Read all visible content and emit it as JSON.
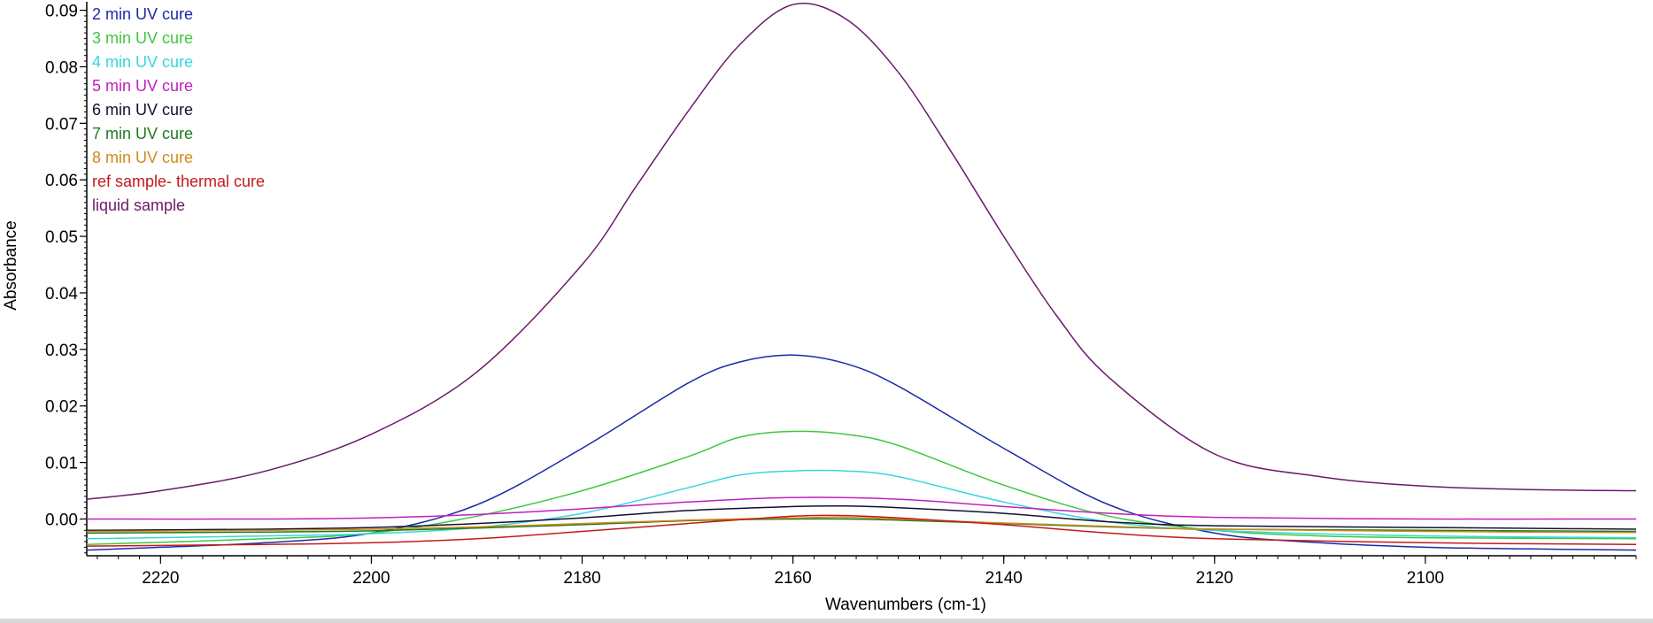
{
  "chart_data": {
    "type": "line",
    "xlabel": "Wavenumbers (cm-1)",
    "ylabel": "Absorbance",
    "x_range": [
      2227,
      2080
    ],
    "y_range": [
      -0.0065,
      0.0915
    ],
    "x_reversed": true,
    "x_ticks": [
      2220,
      2200,
      2180,
      2160,
      2140,
      2120,
      2100
    ],
    "y_ticks": [
      0.0,
      0.01,
      0.02,
      0.03,
      0.04,
      0.05,
      0.06,
      0.07,
      0.08,
      0.09
    ],
    "y_tick_labels": [
      "0.00",
      "0.01",
      "0.02",
      "0.03",
      "0.04",
      "0.05",
      "0.06",
      "0.07",
      "0.08",
      "0.09"
    ],
    "x_tick_labels": [
      "2220",
      "2200",
      "2180",
      "2160",
      "2140",
      "2120",
      "2100"
    ],
    "legend_position": "top-left",
    "grid": false,
    "series": [
      {
        "name": "2 min UV cure",
        "color": "#1c2aa8",
        "points": [
          [
            2227,
            -0.0055
          ],
          [
            2220,
            -0.005
          ],
          [
            2210,
            -0.0042
          ],
          [
            2200,
            -0.0025
          ],
          [
            2190,
            0.0025
          ],
          [
            2180,
            0.0125
          ],
          [
            2170,
            0.024
          ],
          [
            2165,
            0.0278
          ],
          [
            2160,
            0.029
          ],
          [
            2155,
            0.0275
          ],
          [
            2150,
            0.0235
          ],
          [
            2140,
            0.0125
          ],
          [
            2130,
            0.0025
          ],
          [
            2120,
            -0.0025
          ],
          [
            2110,
            -0.0042
          ],
          [
            2100,
            -0.005
          ],
          [
            2090,
            -0.0053
          ],
          [
            2080,
            -0.0055
          ]
        ]
      },
      {
        "name": "3 min UV cure",
        "color": "#3ec83e",
        "points": [
          [
            2227,
            -0.0045
          ],
          [
            2210,
            -0.0035
          ],
          [
            2200,
            -0.0025
          ],
          [
            2190,
            0.0005
          ],
          [
            2180,
            0.005
          ],
          [
            2170,
            0.011
          ],
          [
            2165,
            0.0145
          ],
          [
            2160,
            0.0155
          ],
          [
            2155,
            0.015
          ],
          [
            2150,
            0.013
          ],
          [
            2140,
            0.006
          ],
          [
            2130,
            0.0005
          ],
          [
            2120,
            -0.002
          ],
          [
            2110,
            -0.003
          ],
          [
            2100,
            -0.0033
          ],
          [
            2080,
            -0.0035
          ]
        ]
      },
      {
        "name": "4 min UV cure",
        "color": "#36d6df",
        "points": [
          [
            2227,
            -0.0035
          ],
          [
            2210,
            -0.003
          ],
          [
            2200,
            -0.0026
          ],
          [
            2190,
            -0.0015
          ],
          [
            2180,
            0.001
          ],
          [
            2170,
            0.0055
          ],
          [
            2165,
            0.0078
          ],
          [
            2160,
            0.0085
          ],
          [
            2155,
            0.0085
          ],
          [
            2150,
            0.0075
          ],
          [
            2140,
            0.003
          ],
          [
            2130,
            -0.0005
          ],
          [
            2120,
            -0.002
          ],
          [
            2100,
            -0.003
          ],
          [
            2080,
            -0.0033
          ]
        ]
      },
      {
        "name": "5 min UV cure",
        "color": "#c020c0",
        "points": [
          [
            2227,
            0.0
          ],
          [
            2210,
            0.0
          ],
          [
            2200,
            0.0002
          ],
          [
            2190,
            0.0008
          ],
          [
            2180,
            0.0018
          ],
          [
            2170,
            0.003
          ],
          [
            2160,
            0.0038
          ],
          [
            2150,
            0.0035
          ],
          [
            2140,
            0.0022
          ],
          [
            2130,
            0.001
          ],
          [
            2120,
            0.0003
          ],
          [
            2100,
            0.0
          ],
          [
            2080,
            0.0
          ]
        ]
      },
      {
        "name": "6 min UV cure",
        "color": "#111133",
        "points": [
          [
            2227,
            -0.002
          ],
          [
            2210,
            -0.0018
          ],
          [
            2200,
            -0.0015
          ],
          [
            2190,
            -0.0008
          ],
          [
            2180,
            0.0002
          ],
          [
            2170,
            0.0015
          ],
          [
            2160,
            0.0022
          ],
          [
            2155,
            0.0023
          ],
          [
            2150,
            0.002
          ],
          [
            2140,
            0.001
          ],
          [
            2130,
            -0.0005
          ],
          [
            2120,
            -0.0012
          ],
          [
            2100,
            -0.0015
          ],
          [
            2080,
            -0.0018
          ]
        ]
      },
      {
        "name": "7 min UV cure",
        "color": "#1f7a1f",
        "points": [
          [
            2227,
            -0.0025
          ],
          [
            2210,
            -0.0023
          ],
          [
            2200,
            -0.0021
          ],
          [
            2190,
            -0.0016
          ],
          [
            2180,
            -0.001
          ],
          [
            2170,
            -0.0003
          ],
          [
            2160,
            0.0
          ],
          [
            2155,
            0.0
          ],
          [
            2150,
            -0.0002
          ],
          [
            2140,
            -0.0008
          ],
          [
            2130,
            -0.0014
          ],
          [
            2120,
            -0.0018
          ],
          [
            2100,
            -0.002
          ],
          [
            2080,
            -0.0022
          ]
        ]
      },
      {
        "name": "8 min UV cure",
        "color": "#d08a1a",
        "points": [
          [
            2227,
            -0.0022
          ],
          [
            2210,
            -0.002
          ],
          [
            2200,
            -0.0018
          ],
          [
            2190,
            -0.0014
          ],
          [
            2180,
            -0.0008
          ],
          [
            2170,
            -0.0002
          ],
          [
            2160,
            0.0002
          ],
          [
            2155,
            0.0003
          ],
          [
            2150,
            0.0
          ],
          [
            2140,
            -0.0007
          ],
          [
            2130,
            -0.0013
          ],
          [
            2120,
            -0.0018
          ],
          [
            2100,
            -0.0022
          ],
          [
            2080,
            -0.0024
          ]
        ]
      },
      {
        "name": "ref sample- thermal cure",
        "color": "#c41a1a",
        "points": [
          [
            2227,
            -0.0048
          ],
          [
            2210,
            -0.0045
          ],
          [
            2200,
            -0.0042
          ],
          [
            2190,
            -0.0035
          ],
          [
            2180,
            -0.0022
          ],
          [
            2170,
            -0.0008
          ],
          [
            2160,
            0.0005
          ],
          [
            2155,
            0.0006
          ],
          [
            2150,
            0.0002
          ],
          [
            2140,
            -0.001
          ],
          [
            2130,
            -0.0025
          ],
          [
            2120,
            -0.0035
          ],
          [
            2100,
            -0.0042
          ],
          [
            2080,
            -0.0045
          ]
        ]
      },
      {
        "name": "liquid sample",
        "color": "#6a1a6a",
        "points": [
          [
            2227,
            0.0035
          ],
          [
            2220,
            0.005
          ],
          [
            2210,
            0.0085
          ],
          [
            2200,
            0.015
          ],
          [
            2190,
            0.026
          ],
          [
            2180,
            0.045
          ],
          [
            2175,
            0.0585
          ],
          [
            2170,
            0.072
          ],
          [
            2165,
            0.084
          ],
          [
            2160,
            0.091
          ],
          [
            2155,
            0.0885
          ],
          [
            2150,
            0.079
          ],
          [
            2145,
            0.065
          ],
          [
            2140,
            0.05
          ],
          [
            2135,
            0.036
          ],
          [
            2130,
            0.025
          ],
          [
            2120,
            0.0115
          ],
          [
            2110,
            0.0075
          ],
          [
            2100,
            0.0058
          ],
          [
            2090,
            0.0052
          ],
          [
            2080,
            0.005
          ]
        ]
      }
    ]
  }
}
